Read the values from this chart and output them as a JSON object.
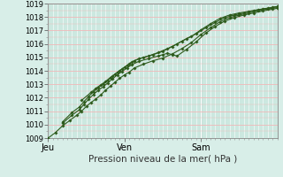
{
  "xlabel": "Pression niveau de la mer( hPa )",
  "ylim": [
    1009,
    1019
  ],
  "yticks": [
    1009,
    1010,
    1011,
    1012,
    1013,
    1014,
    1015,
    1016,
    1017,
    1018,
    1019
  ],
  "xlim": [
    0,
    48
  ],
  "xtick_positions": [
    0,
    16,
    32
  ],
  "xtick_labels": [
    "Jeu",
    "Ven",
    "Sam"
  ],
  "bg_color": "#d8eee8",
  "plot_bg_color": "#cce8e0",
  "hgrid_color": "#f0b8b8",
  "vgrid_color": "#ffffff",
  "line_color": "#2d5a1b",
  "line_width": 0.8,
  "marker": "D",
  "marker_size": 1.8,
  "series1_x": [
    0,
    1.5,
    3,
    4.5,
    6,
    7,
    8,
    9,
    10,
    11,
    12,
    13,
    14,
    15,
    16,
    17,
    18,
    20,
    22,
    24,
    26,
    28,
    30,
    32,
    34,
    36,
    38,
    40,
    42,
    44,
    46,
    48
  ],
  "series1_y": [
    1009.0,
    1009.4,
    1009.9,
    1010.3,
    1010.7,
    1011.0,
    1011.35,
    1011.65,
    1011.9,
    1012.2,
    1012.55,
    1012.85,
    1013.15,
    1013.45,
    1013.7,
    1013.9,
    1014.2,
    1014.5,
    1014.75,
    1014.95,
    1015.25,
    1015.65,
    1016.1,
    1016.7,
    1017.2,
    1017.65,
    1017.95,
    1018.15,
    1018.3,
    1018.45,
    1018.6,
    1018.7
  ],
  "series2_x": [
    3,
    5,
    6.5,
    7.5,
    8.5,
    9.5,
    10.5,
    11.5,
    12.5,
    13.5,
    14.5,
    15.5,
    16.5,
    17.5,
    19,
    21,
    23,
    25,
    27,
    29,
    31,
    33,
    35,
    37,
    39,
    41,
    43,
    45,
    47,
    48
  ],
  "series2_y": [
    1010.2,
    1010.9,
    1011.3,
    1011.7,
    1012.1,
    1012.45,
    1012.75,
    1013.0,
    1013.3,
    1013.6,
    1013.9,
    1014.15,
    1014.4,
    1014.65,
    1014.9,
    1015.1,
    1015.35,
    1015.65,
    1016.0,
    1016.4,
    1016.75,
    1017.2,
    1017.6,
    1017.95,
    1018.15,
    1018.3,
    1018.45,
    1018.6,
    1018.72,
    1018.78
  ],
  "series3_x": [
    3,
    5,
    6.5,
    7.5,
    8.5,
    9.5,
    10.5,
    11.5,
    12.5,
    13.5,
    14.5,
    15.5,
    16.5,
    17.5,
    19,
    21,
    23,
    24,
    25,
    26,
    27,
    29,
    31,
    33,
    35,
    37,
    39,
    41,
    43,
    45,
    47,
    48
  ],
  "series3_y": [
    1010.1,
    1010.7,
    1011.1,
    1011.5,
    1011.9,
    1012.25,
    1012.55,
    1012.8,
    1013.1,
    1013.4,
    1013.7,
    1013.95,
    1014.2,
    1014.45,
    1014.7,
    1014.9,
    1015.1,
    1015.2,
    1015.3,
    1015.2,
    1015.1,
    1015.6,
    1016.15,
    1016.8,
    1017.3,
    1017.7,
    1017.95,
    1018.15,
    1018.3,
    1018.45,
    1018.58,
    1018.65
  ],
  "series4_x": [
    7,
    9,
    10,
    11,
    12,
    13,
    14,
    15,
    16,
    17,
    18,
    20,
    22,
    24,
    26,
    28,
    30,
    32,
    34,
    36,
    38,
    40,
    42,
    44,
    46,
    48
  ],
  "series4_y": [
    1011.8,
    1012.4,
    1012.7,
    1012.95,
    1013.2,
    1013.5,
    1013.75,
    1014.0,
    1014.25,
    1014.5,
    1014.75,
    1015.0,
    1015.2,
    1015.45,
    1015.8,
    1016.2,
    1016.55,
    1017.05,
    1017.5,
    1017.9,
    1018.15,
    1018.3,
    1018.42,
    1018.55,
    1018.65,
    1018.78
  ]
}
